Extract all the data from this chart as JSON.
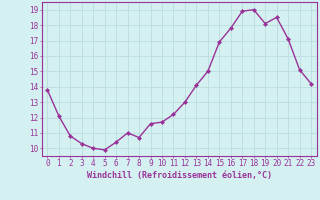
{
  "x": [
    0,
    1,
    2,
    3,
    4,
    5,
    6,
    7,
    8,
    9,
    10,
    11,
    12,
    13,
    14,
    15,
    16,
    17,
    18,
    19,
    20,
    21,
    22,
    23
  ],
  "y": [
    13.8,
    12.1,
    10.8,
    10.3,
    10.0,
    9.9,
    10.4,
    11.0,
    10.7,
    11.6,
    11.7,
    12.2,
    13.0,
    14.1,
    15.0,
    16.9,
    17.8,
    18.9,
    19.0,
    18.1,
    18.5,
    17.1,
    15.1,
    14.2
  ],
  "line_color": "#993399",
  "marker": "D",
  "marker_size": 2.0,
  "linewidth": 1.0,
  "xlabel": "Windchill (Refroidissement éolien,°C)",
  "xlabel_fontsize": 6,
  "ylabel_ticks": [
    10,
    11,
    12,
    13,
    14,
    15,
    16,
    17,
    18,
    19
  ],
  "xlim": [
    -0.5,
    23.5
  ],
  "ylim": [
    9.5,
    19.5
  ],
  "bg_color": "#d4f0f0",
  "grid_color": "#bbdddd",
  "tick_color": "#993399",
  "tick_fontsize": 5.5,
  "spine_color": "#993399"
}
